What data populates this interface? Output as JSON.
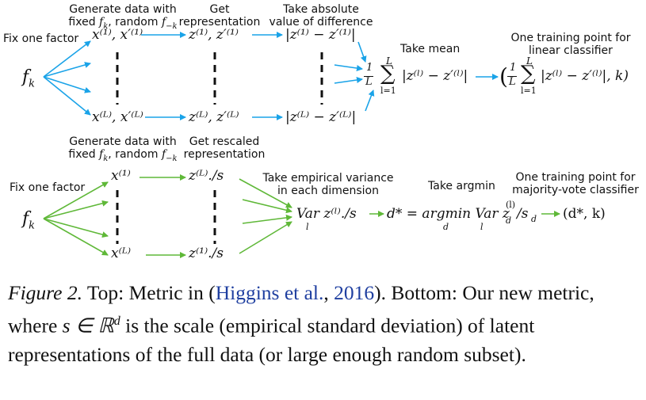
{
  "top": {
    "fix_factor": "Fix one factor",
    "f_k": "f",
    "f_k_sub": "k",
    "gen_line1": "Generate data with",
    "gen_line2_pre": "fixed ",
    "gen_line2_mid": ", random ",
    "fk_inline": "f",
    "fk_inline_sub": "k",
    "fmk_inline": "f",
    "fmk_inline_sub": "−k",
    "get_line1": "Get",
    "get_line2": "representation",
    "abs_line1": "Take absolute",
    "abs_line2": "value of difference",
    "take_mean": "Take mean",
    "train_line1": "One training point for",
    "train_line2": "linear classifier",
    "x_top": "x⁽¹⁾, x′⁽¹⁾",
    "x_bot": "x⁽ᴸ⁾, x′⁽ᴸ⁾",
    "z_top": "z⁽¹⁾, z′⁽¹⁾",
    "z_bot": "z⁽ᴸ⁾, z′⁽ᴸ⁾",
    "d_top": "|z⁽¹⁾ − z′⁽¹⁾|",
    "d_bot": "|z⁽ᴸ⁾ − z′⁽ᴸ⁾|",
    "mean_expr": "|z⁽ˡ⁾ − z′⁽ˡ⁾|",
    "frac_1": "1",
    "frac_L": "L",
    "sum_top": "L",
    "sum_bot": "l=1",
    "result_expr": "|z⁽ˡ⁾ − z′⁽ˡ⁾|, k)",
    "result_paren": "("
  },
  "bottom": {
    "fix_factor": "Fix one factor",
    "f_k": "f",
    "f_k_sub": "k",
    "gen_line1": "Generate data with",
    "gen_line2_pre": "fixed ",
    "gen_line2_mid": ", random ",
    "fk_inline": "f",
    "fk_inline_sub": "k",
    "fmk_inline": "f",
    "fmk_inline_sub": "−k",
    "get_line1": "Get rescaled",
    "get_line2": "representation",
    "var_line1": "Take empirical variance",
    "var_line2": "in each dimension",
    "argmin": "Take argmin",
    "train_line1": "One training point for",
    "train_line2": "majority-vote classifier",
    "x_top": "x⁽¹⁾",
    "x_bot": "x⁽ᴸ⁾",
    "z_top": "z⁽ᴸ⁾./s",
    "z_bot": "z⁽¹⁾./s",
    "var_expr": "Var z⁽ˡ⁾./s",
    "var_sub": "l",
    "d_expr": "d* = argmin Var z",
    "d_expr_sub_min": "d",
    "d_expr_sub_var": "l",
    "d_expr_tail": "/s",
    "d_expr_tail_sub": "d",
    "zd_super": "(l)",
    "zd_sub": "d",
    "result": "(d*, k)"
  },
  "caption": {
    "figure": "Figure 2.",
    "part1": " Top: Metric in (",
    "cite_author": "Higgins et al.",
    "cite_sep": ", ",
    "cite_year": "2016",
    "part2": "). Bottom: Our new metric, where ",
    "s_in": "s ∈ ℝ",
    "s_sup": "d",
    "part3": " is the scale (empirical standard deviation) of latent representations of the full data (or large enough random subset)."
  },
  "colors": {
    "top_arrow": "#1aa3e8",
    "bottom_arrow": "#5fb838",
    "cite": "#1f3fa0"
  }
}
